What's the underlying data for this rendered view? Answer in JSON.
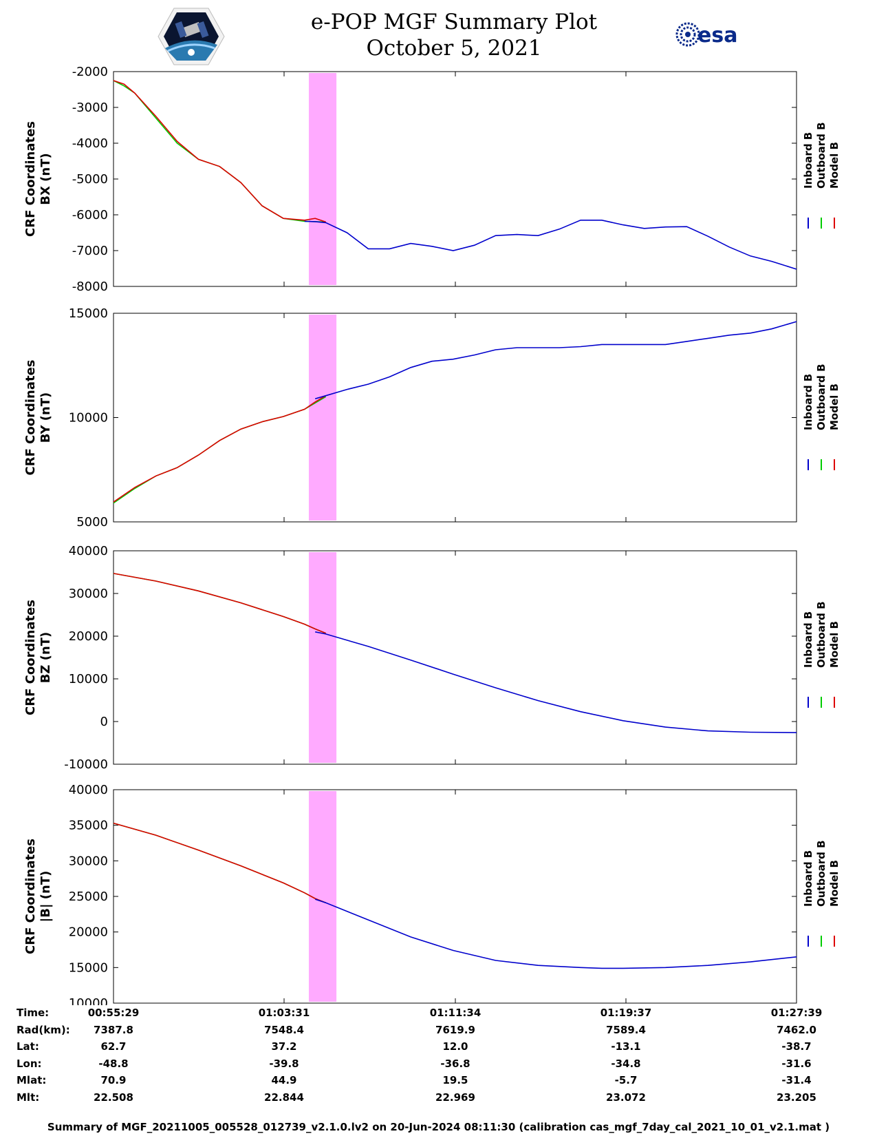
{
  "header": {
    "title_line1": "e-POP MGF Summary Plot",
    "title_line2": "October 5, 2021",
    "logo_left": "cassiope-logo",
    "logo_right_text": "esa"
  },
  "colors": {
    "inboard": "#0000cc",
    "outboard": "#00cc00",
    "model": "#dd0000",
    "highlight": "#ffaaff"
  },
  "chart_data": [
    {
      "type": "line",
      "ylabel_line1": "CRF Coordinates",
      "ylabel_line2": "BX (nT)",
      "ylim": [
        -8000,
        -2000
      ],
      "yticks": [
        -2000,
        -3000,
        -4000,
        -5000,
        -6000,
        -7000,
        -8000
      ],
      "xlim_minutes": [
        0,
        32.17
      ],
      "highlight_minutes": [
        9.2,
        10.5
      ],
      "legend": [
        "Inboard B",
        "Outboard B",
        "Model B"
      ],
      "x_minutes": [
        0,
        0.5,
        1,
        2,
        3,
        4,
        5,
        6,
        7,
        8,
        9,
        9.5,
        10,
        11,
        12,
        13,
        14,
        15,
        16,
        17,
        18,
        19,
        20,
        21,
        22,
        23,
        24,
        25,
        26,
        27,
        28,
        29,
        30,
        31,
        32.17
      ],
      "series": [
        {
          "name": "Inboard B",
          "values": [
            null,
            null,
            null,
            null,
            null,
            null,
            null,
            null,
            null,
            null,
            -6180,
            -6190,
            -6220,
            -6500,
            -6950,
            -6950,
            -6800,
            -6880,
            -7000,
            -6850,
            -6580,
            -6550,
            -6580,
            -6400,
            -6150,
            -6150,
            -6280,
            -6380,
            -6340,
            -6330,
            -6600,
            -6900,
            -7150,
            -7300,
            -7520
          ]
        },
        {
          "name": "Outboard B",
          "values": [
            -2250,
            -2400,
            -2600,
            -3300,
            -4000,
            -4450,
            -4650,
            -5100,
            -5750,
            -6100,
            -6180,
            -6190,
            -6200,
            null,
            null,
            null,
            null,
            null,
            null,
            null,
            null,
            null,
            null,
            null,
            null,
            null,
            null,
            null,
            null,
            null,
            null,
            null,
            null,
            null,
            null
          ]
        },
        {
          "name": "Model B",
          "values": [
            -2250,
            -2350,
            -2600,
            -3250,
            -3950,
            -4450,
            -4650,
            -5100,
            -5750,
            -6100,
            -6150,
            -6100,
            -6200,
            null,
            null,
            null,
            null,
            null,
            null,
            null,
            null,
            null,
            null,
            null,
            null,
            null,
            null,
            null,
            null,
            null,
            null,
            null,
            null,
            null,
            null
          ]
        }
      ]
    },
    {
      "type": "line",
      "ylabel_line1": "CRF Coordinates",
      "ylabel_line2": "BY (nT)",
      "ylim": [
        5000,
        15000
      ],
      "yticks": [
        15000,
        10000,
        5000
      ],
      "xlim_minutes": [
        0,
        32.17
      ],
      "highlight_minutes": [
        9.2,
        10.5
      ],
      "legend": [
        "Inboard B",
        "Outboard B",
        "Model B"
      ],
      "x_minutes": [
        0,
        1,
        2,
        3,
        4,
        5,
        6,
        7,
        8,
        9,
        9.5,
        10,
        11,
        12,
        13,
        14,
        15,
        16,
        17,
        18,
        19,
        20,
        21,
        22,
        23,
        24,
        25,
        26,
        27,
        28,
        29,
        30,
        31,
        32.17
      ],
      "series": [
        {
          "name": "Inboard B",
          "values": [
            null,
            null,
            null,
            null,
            null,
            null,
            null,
            null,
            null,
            null,
            10900,
            11050,
            11350,
            11600,
            11950,
            12400,
            12700,
            12800,
            13000,
            13250,
            13350,
            13350,
            13350,
            13400,
            13500,
            13500,
            13500,
            13500,
            13650,
            13800,
            13950,
            14050,
            14250,
            14600
          ]
        },
        {
          "name": "Outboard B",
          "values": [
            5900,
            6600,
            7200,
            7600,
            8200,
            8900,
            9450,
            9800,
            10050,
            10400,
            10700,
            11000,
            null,
            null,
            null,
            null,
            null,
            null,
            null,
            null,
            null,
            null,
            null,
            null,
            null,
            null,
            null,
            null,
            null,
            null,
            null,
            null,
            null,
            null
          ]
        },
        {
          "name": "Model B",
          "values": [
            5950,
            6650,
            7200,
            7600,
            8200,
            8900,
            9450,
            9800,
            10050,
            10400,
            10750,
            11050,
            null,
            null,
            null,
            null,
            null,
            null,
            null,
            null,
            null,
            null,
            null,
            null,
            null,
            null,
            null,
            null,
            null,
            null,
            null,
            null,
            null,
            null
          ]
        }
      ]
    },
    {
      "type": "line",
      "ylabel_line1": "CRF Coordinates",
      "ylabel_line2": "BZ (nT)",
      "ylim": [
        -10000,
        40000
      ],
      "yticks": [
        40000,
        30000,
        20000,
        10000,
        0,
        -10000
      ],
      "xlim_minutes": [
        0,
        32.17
      ],
      "highlight_minutes": [
        9.2,
        10.5
      ],
      "legend": [
        "Inboard B",
        "Outboard B",
        "Model B"
      ],
      "x_minutes": [
        0,
        2,
        4,
        6,
        8,
        9,
        9.5,
        10,
        12,
        14,
        16,
        18,
        20,
        22,
        24,
        26,
        28,
        30,
        32.17
      ],
      "series": [
        {
          "name": "Inboard B",
          "values": [
            null,
            null,
            null,
            null,
            null,
            null,
            21000,
            20500,
            17600,
            14400,
            11100,
            7900,
            4900,
            2300,
            200,
            -1300,
            -2200,
            -2500,
            -2600
          ]
        },
        {
          "name": "Outboard B",
          "values": [
            34700,
            32900,
            30600,
            27800,
            24600,
            22800,
            21700,
            20700,
            null,
            null,
            null,
            null,
            null,
            null,
            null,
            null,
            null,
            null,
            null
          ]
        },
        {
          "name": "Model B",
          "values": [
            34700,
            32900,
            30600,
            27800,
            24600,
            22800,
            21700,
            20700,
            null,
            null,
            null,
            null,
            null,
            null,
            null,
            null,
            null,
            null,
            null
          ]
        }
      ]
    },
    {
      "type": "line",
      "ylabel_line1": "CRF Coordinates",
      "ylabel_line2": "|B| (nT)",
      "ylim": [
        10000,
        40000
      ],
      "yticks": [
        40000,
        35000,
        30000,
        25000,
        20000,
        15000,
        10000
      ],
      "xlim_minutes": [
        0,
        32.17
      ],
      "highlight_minutes": [
        9.2,
        10.5
      ],
      "legend": [
        "Inboard B",
        "Outboard B",
        "Model B"
      ],
      "x_minutes": [
        0,
        2,
        4,
        6,
        8,
        9,
        9.5,
        10,
        12,
        14,
        16,
        18,
        20,
        22,
        23,
        24,
        26,
        28,
        30,
        32.17
      ],
      "series": [
        {
          "name": "Inboard B",
          "values": [
            null,
            null,
            null,
            null,
            null,
            null,
            24600,
            24100,
            21700,
            19300,
            17400,
            16000,
            15300,
            15000,
            14900,
            14900,
            15000,
            15300,
            15800,
            16500
          ]
        },
        {
          "name": "Outboard B",
          "values": [
            35300,
            33600,
            31500,
            29300,
            26900,
            25500,
            24700,
            24100,
            null,
            null,
            null,
            null,
            null,
            null,
            null,
            null,
            null,
            null,
            null,
            null
          ]
        },
        {
          "name": "Model B",
          "values": [
            35300,
            33600,
            31500,
            29300,
            26900,
            25500,
            24700,
            24100,
            null,
            null,
            null,
            null,
            null,
            null,
            null,
            null,
            null,
            null,
            null,
            null
          ]
        }
      ]
    }
  ],
  "table": {
    "row_labels": [
      "Time:",
      "Rad(km):",
      "Lat:",
      "Lon:",
      "Mlat:",
      "Mlt:"
    ],
    "columns": [
      [
        "00:55:29",
        "7387.8",
        "62.7",
        "-48.8",
        "70.9",
        "22.508"
      ],
      [
        "01:03:31",
        "7548.4",
        "37.2",
        "-39.8",
        "44.9",
        "22.844"
      ],
      [
        "01:11:34",
        "7619.9",
        "12.0",
        "-36.8",
        "19.5",
        "22.969"
      ],
      [
        "01:19:37",
        "7589.4",
        "-13.1",
        "-34.8",
        "-5.7",
        "23.072"
      ],
      [
        "01:27:39",
        "7462.0",
        "-38.7",
        "-31.6",
        "-31.4",
        "23.205"
      ]
    ]
  },
  "footnote": "Summary of MGF_20211005_005528_012739_v2.1.0.lv2 on 20-Jun-2024 08:11:30 (calibration cas_mgf_7day_cal_2021_10_01_v2.1.mat )"
}
